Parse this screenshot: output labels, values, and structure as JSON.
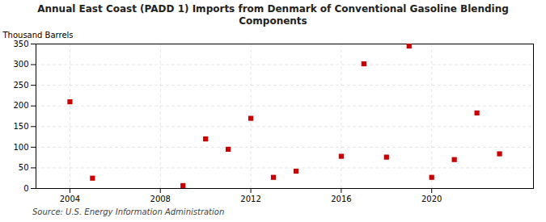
{
  "chart_data": {
    "type": "scatter",
    "title": "Annual East Coast (PADD 1) Imports from Denmark of Conventional Gasoline Blending\nComponents",
    "ylabel": "Thousand Barrels",
    "source": "Source: U.S. Energy Information Administration",
    "x": [
      2004,
      2005,
      2009,
      2010,
      2011,
      2012,
      2013,
      2014,
      2016,
      2017,
      2018,
      2019,
      2020,
      2021,
      2022,
      2023
    ],
    "values": [
      210,
      25,
      7,
      120,
      95,
      170,
      27,
      42,
      78,
      302,
      76,
      345,
      27,
      70,
      183,
      84
    ],
    "color": "#cc0000",
    "marker": "square",
    "xlim": [
      2002.5,
      2024.5
    ],
    "ylim": [
      0,
      350
    ],
    "xticks": [
      2004,
      2008,
      2012,
      2016,
      2020
    ],
    "yticks": [
      0,
      50,
      100,
      150,
      200,
      250,
      300,
      350
    ],
    "grid": true
  }
}
